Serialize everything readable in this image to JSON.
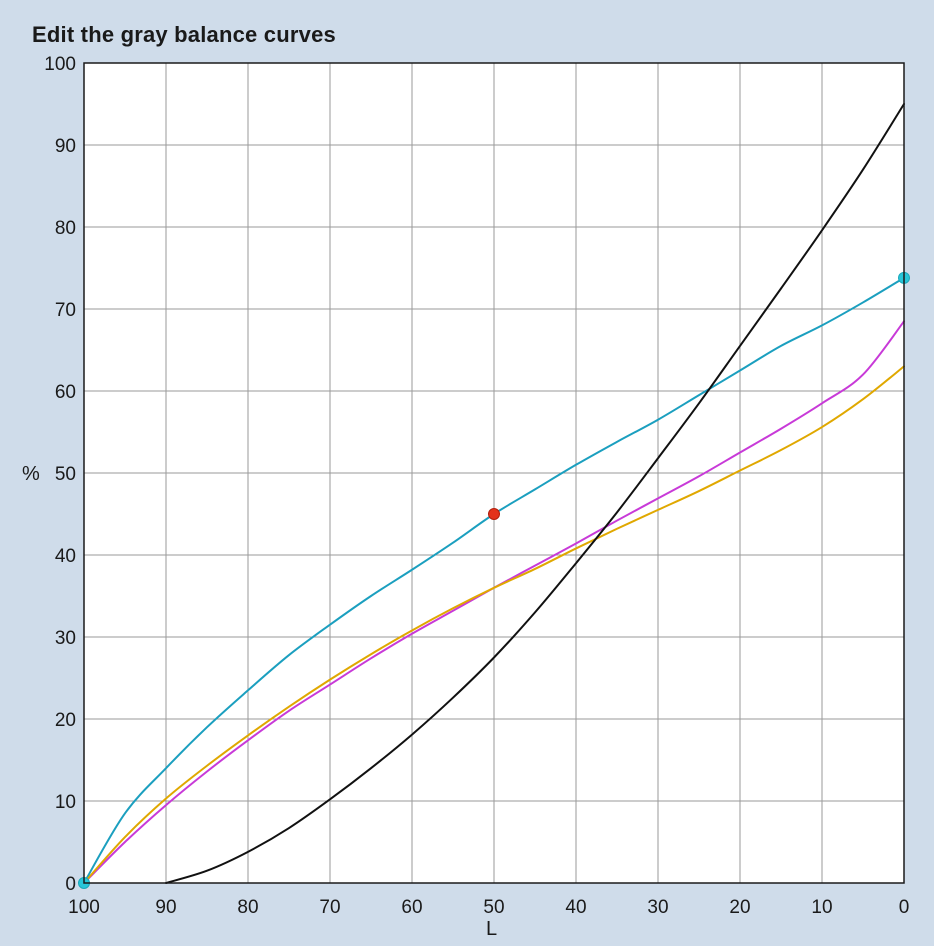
{
  "panel": {
    "title": "Edit the gray balance curves"
  },
  "chart_data": {
    "type": "line",
    "title": "Edit the gray balance curves",
    "xlabel": "L",
    "ylabel": "%",
    "xlim": [
      100,
      0
    ],
    "ylim": [
      0,
      100
    ],
    "x_reversed": true,
    "grid": true,
    "x_ticks": [
      100,
      90,
      80,
      70,
      60,
      50,
      40,
      30,
      20,
      10,
      0
    ],
    "y_ticks": [
      0,
      10,
      20,
      30,
      40,
      50,
      60,
      70,
      80,
      90,
      100
    ],
    "series": [
      {
        "key": "cyan",
        "color": "#1b9fbf",
        "x": [
          100,
          95,
          90,
          85,
          80,
          75,
          70,
          65,
          60,
          55,
          50,
          45,
          40,
          35,
          30,
          25,
          20,
          15,
          10,
          5,
          0
        ],
        "y": [
          0,
          8.5,
          14,
          19,
          23.5,
          27.8,
          31.5,
          35,
          38.2,
          41.5,
          45,
          48,
          51,
          53.8,
          56.5,
          59.5,
          62.5,
          65.5,
          68,
          70.8,
          73.8
        ]
      },
      {
        "key": "magenta",
        "color": "#c83ad8",
        "x": [
          100,
          95,
          90,
          85,
          80,
          75,
          70,
          65,
          60,
          55,
          50,
          45,
          40,
          35,
          30,
          25,
          20,
          15,
          10,
          5,
          0
        ],
        "y": [
          0,
          5,
          9.5,
          13.6,
          17.4,
          21,
          24.2,
          27.4,
          30.4,
          33.2,
          36,
          38.7,
          41.4,
          44.2,
          46.9,
          49.6,
          52.5,
          55.4,
          58.5,
          62,
          68.5
        ]
      },
      {
        "key": "yellow",
        "color": "#e0a800",
        "x": [
          100,
          95,
          90,
          85,
          80,
          75,
          70,
          65,
          60,
          55,
          50,
          45,
          40,
          35,
          30,
          25,
          20,
          15,
          10,
          5,
          0
        ],
        "y": [
          0,
          5.6,
          10.3,
          14.3,
          18,
          21.5,
          24.8,
          27.9,
          30.8,
          33.5,
          36,
          38.3,
          40.8,
          43.2,
          45.5,
          47.8,
          50.3,
          52.8,
          55.6,
          59,
          63
        ]
      },
      {
        "key": "black",
        "color": "#111111",
        "x": [
          90,
          85,
          80,
          75,
          70,
          65,
          60,
          55,
          50,
          45,
          40,
          35,
          30,
          25,
          20,
          15,
          10,
          5,
          0
        ],
        "y": [
          0,
          1.5,
          3.8,
          6.7,
          10.2,
          14,
          18.1,
          22.6,
          27.5,
          33,
          39,
          45.2,
          51.8,
          58.5,
          65.5,
          72.5,
          79.6,
          87,
          95
        ]
      }
    ],
    "control_points": [
      {
        "series": "cyan",
        "x": 100,
        "y": 0,
        "color": "#27c6d9"
      },
      {
        "series": "cyan",
        "x": 0,
        "y": 73.8,
        "color": "#27c6d9"
      },
      {
        "series": "cyan",
        "x": 50,
        "y": 45,
        "color": "#e3321b"
      }
    ]
  }
}
